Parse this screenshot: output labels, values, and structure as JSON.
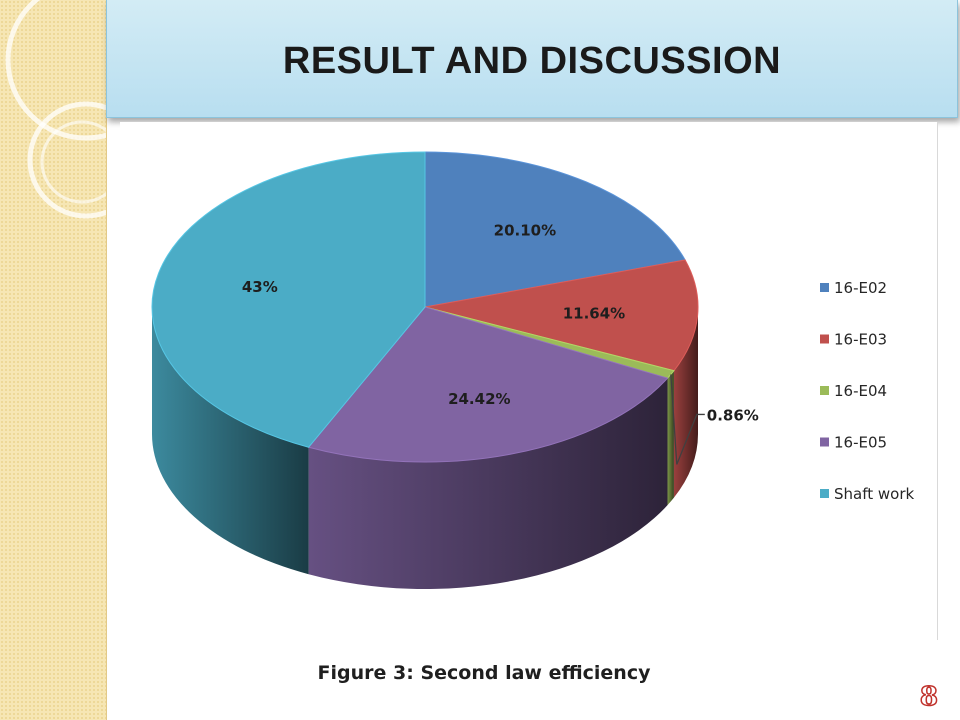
{
  "slide": {
    "title": "RESULT AND DISCUSSION",
    "caption": "Figure 3: Second law efficiency",
    "page_number": "8"
  },
  "colors": {
    "title_bar": "#c5e6f3",
    "side_strip": "#f6e6b4",
    "page_number": "#c0322c"
  },
  "chart_data": {
    "type": "pie",
    "style": "3d",
    "legend_position": "right",
    "labels": [
      "16-E02",
      "16-E03",
      "16-E04",
      "16-E05",
      "Shaft work"
    ],
    "values": [
      20.1,
      11.64,
      0.86,
      24.42,
      43
    ],
    "data_labels": [
      "20.10%",
      "11.64%",
      "0.86%",
      "24.42%",
      "43%"
    ],
    "colors": [
      "#4f81bd",
      "#c0504d",
      "#9bbb59",
      "#8064a2",
      "#4bacc6"
    ]
  }
}
